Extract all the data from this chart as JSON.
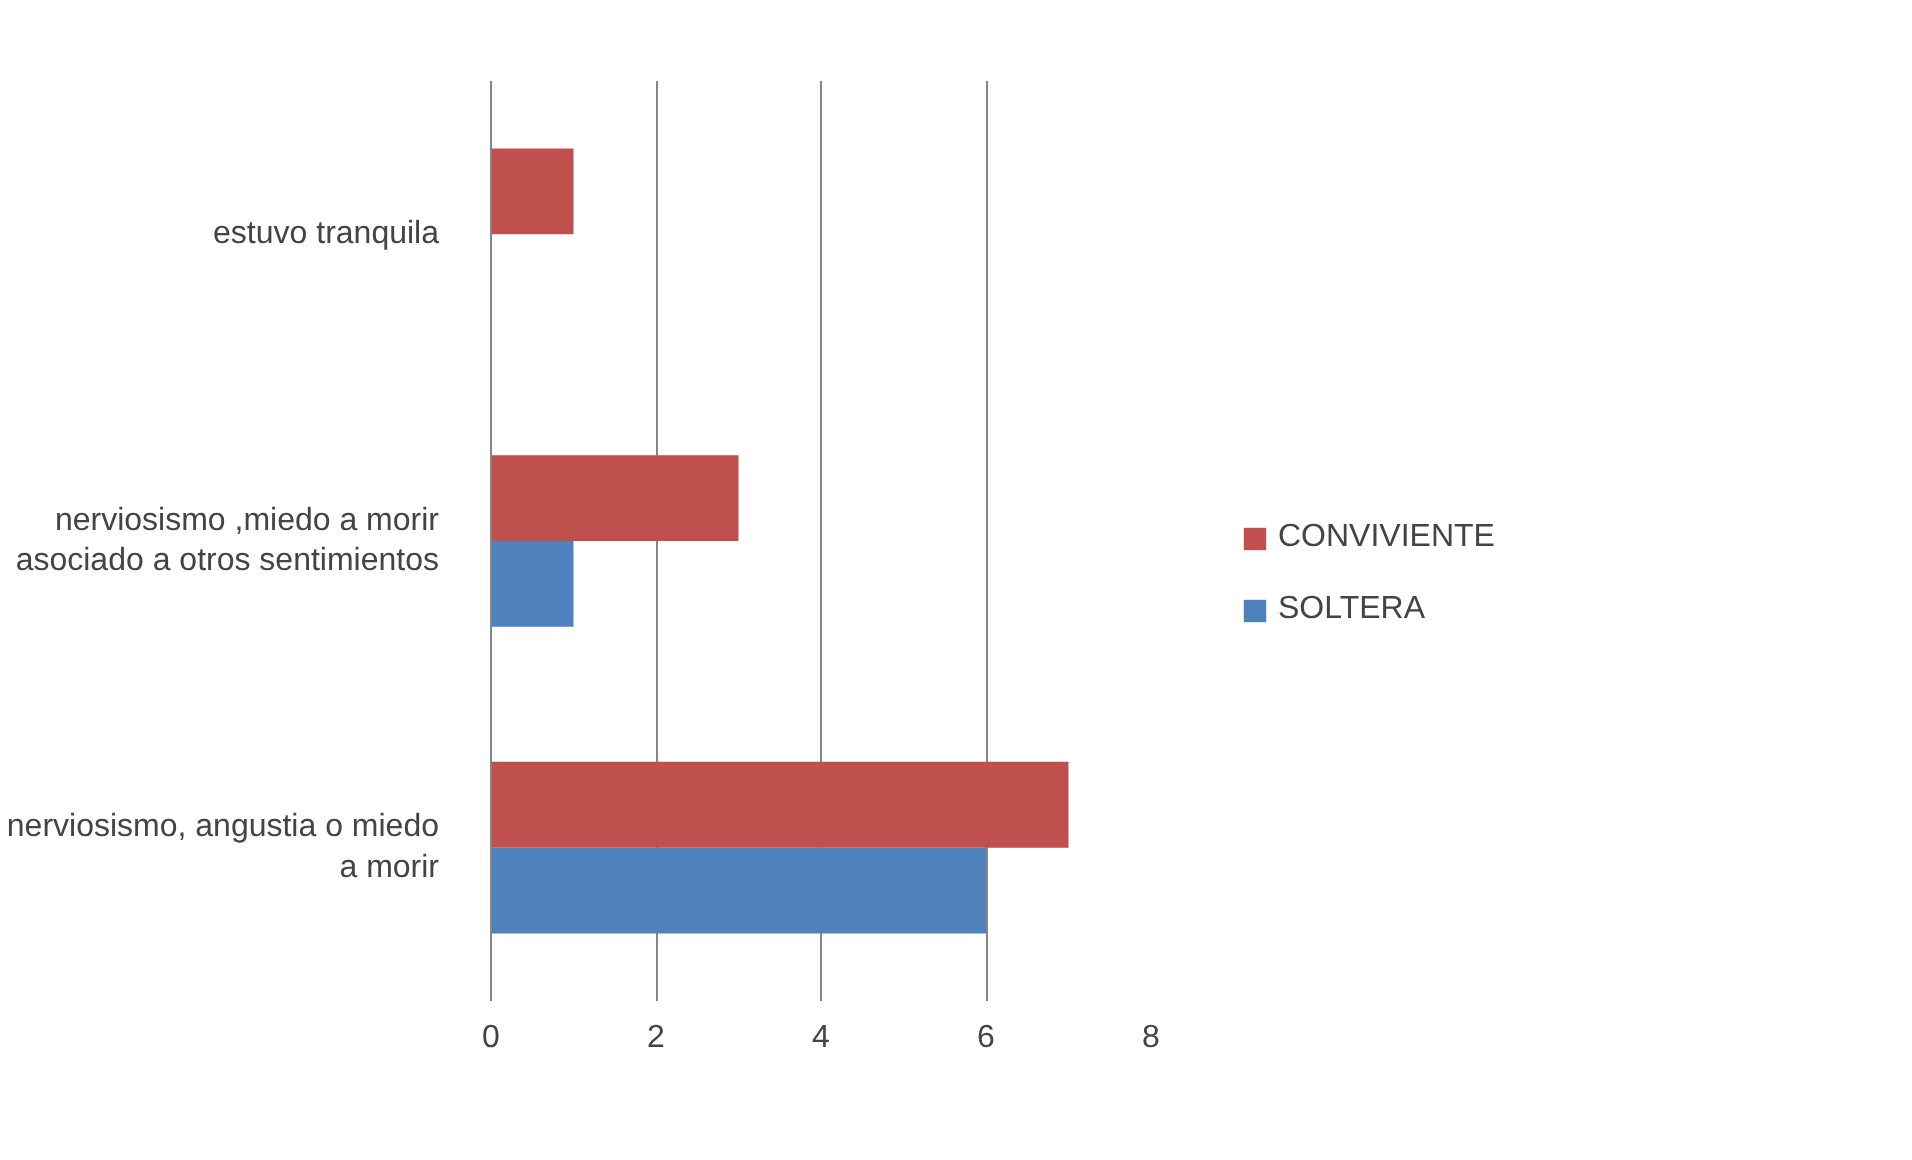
{
  "chart_data": {
    "type": "bar",
    "orientation": "horizontal",
    "categories": [
      "estuvo tranquila",
      "nerviosismo ,miedo a morir asociado a otros sentimientos",
      "nerviosismo, angustia o miedo a morir"
    ],
    "series": [
      {
        "name": "CONVIVIENTE",
        "color": "#c0504d",
        "values": [
          1,
          3,
          7
        ]
      },
      {
        "name": "SOLTERA",
        "color": "#4f81bd",
        "values": [
          null,
          1,
          6
        ]
      }
    ],
    "xlim": [
      0,
      8
    ],
    "xticks": [
      0,
      2,
      4,
      6,
      8
    ],
    "grid": "x",
    "legend": "right"
  }
}
